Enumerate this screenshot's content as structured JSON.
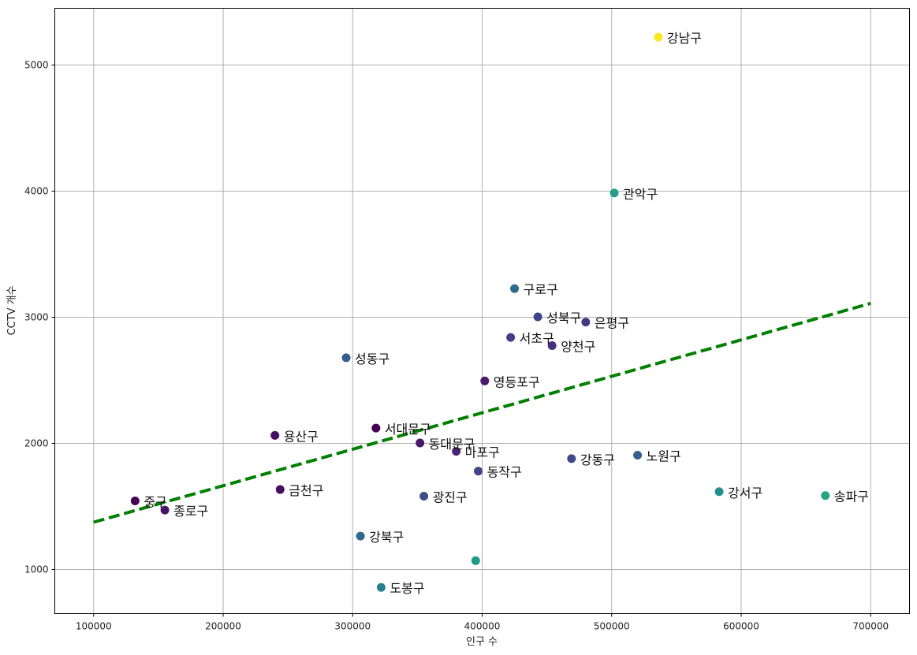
{
  "chart_data": {
    "type": "scatter",
    "xlabel": "인구 수",
    "ylabel": "CCTV 개수",
    "xlim": [
      70000,
      730000
    ],
    "ylim": [
      650,
      5450
    ],
    "x_ticks": [
      100000,
      200000,
      300000,
      400000,
      500000,
      600000,
      700000
    ],
    "y_ticks": [
      1000,
      2000,
      3000,
      4000,
      5000
    ],
    "grid": true,
    "colormap": "viridis",
    "points": [
      {
        "name": "강남구",
        "x": 536000,
        "y": 5221,
        "color": "#fde725"
      },
      {
        "name": "관악구",
        "x": 502000,
        "y": 3985,
        "color": "#2a9d8c"
      },
      {
        "name": "구로구",
        "x": 425000,
        "y": 3227,
        "color": "#2c6d8e"
      },
      {
        "name": "성북구",
        "x": 443000,
        "y": 3003,
        "color": "#404387"
      },
      {
        "name": "은평구",
        "x": 480000,
        "y": 2962,
        "color": "#453781"
      },
      {
        "name": "서초구",
        "x": 422000,
        "y": 2840,
        "color": "#433e85"
      },
      {
        "name": "양천구",
        "x": 454000,
        "y": 2775,
        "color": "#46307e"
      },
      {
        "name": "성동구",
        "x": 295000,
        "y": 2679,
        "color": "#355e8d"
      },
      {
        "name": "영등포구",
        "x": 402000,
        "y": 2495,
        "color": "#481b6d"
      },
      {
        "name": "서대문구",
        "x": 318000,
        "y": 2121,
        "color": "#440154"
      },
      {
        "name": "용산구",
        "x": 240000,
        "y": 2063,
        "color": "#471063"
      },
      {
        "name": "동대문구",
        "x": 352000,
        "y": 2003,
        "color": "#481769"
      },
      {
        "name": "마포구",
        "x": 380000,
        "y": 1937,
        "color": "#482576"
      },
      {
        "name": "강동구",
        "x": 469000,
        "y": 1879,
        "color": "#3e4989"
      },
      {
        "name": "노원구",
        "x": 520000,
        "y": 1906,
        "color": "#355f8d"
      },
      {
        "name": "동작구",
        "x": 397000,
        "y": 1780,
        "color": "#414487"
      },
      {
        "name": "금천구",
        "x": 244000,
        "y": 1634,
        "color": "#440f5e"
      },
      {
        "name": "강서구",
        "x": 583000,
        "y": 1617,
        "color": "#21918c"
      },
      {
        "name": "송파구",
        "x": 665000,
        "y": 1586,
        "color": "#26a382"
      },
      {
        "name": "광진구",
        "x": 355000,
        "y": 1581,
        "color": "#3d4e8a"
      },
      {
        "name": "중구",
        "x": 132000,
        "y": 1544,
        "color": "#440154"
      },
      {
        "name": "종로구",
        "x": 155000,
        "y": 1471,
        "color": "#481467"
      },
      {
        "name": "강북구",
        "x": 306000,
        "y": 1265,
        "color": "#31688e"
      },
      {
        "name": "",
        "x": 395000,
        "y": 1070,
        "color": "#1f9a8a"
      },
      {
        "name": "도봉구",
        "x": 322000,
        "y": 858,
        "color": "#287d8e"
      }
    ],
    "trendline": {
      "x": [
        100000,
        700000
      ],
      "y": [
        1375,
        3110
      ],
      "color": "#008000",
      "style": "dashed"
    }
  }
}
